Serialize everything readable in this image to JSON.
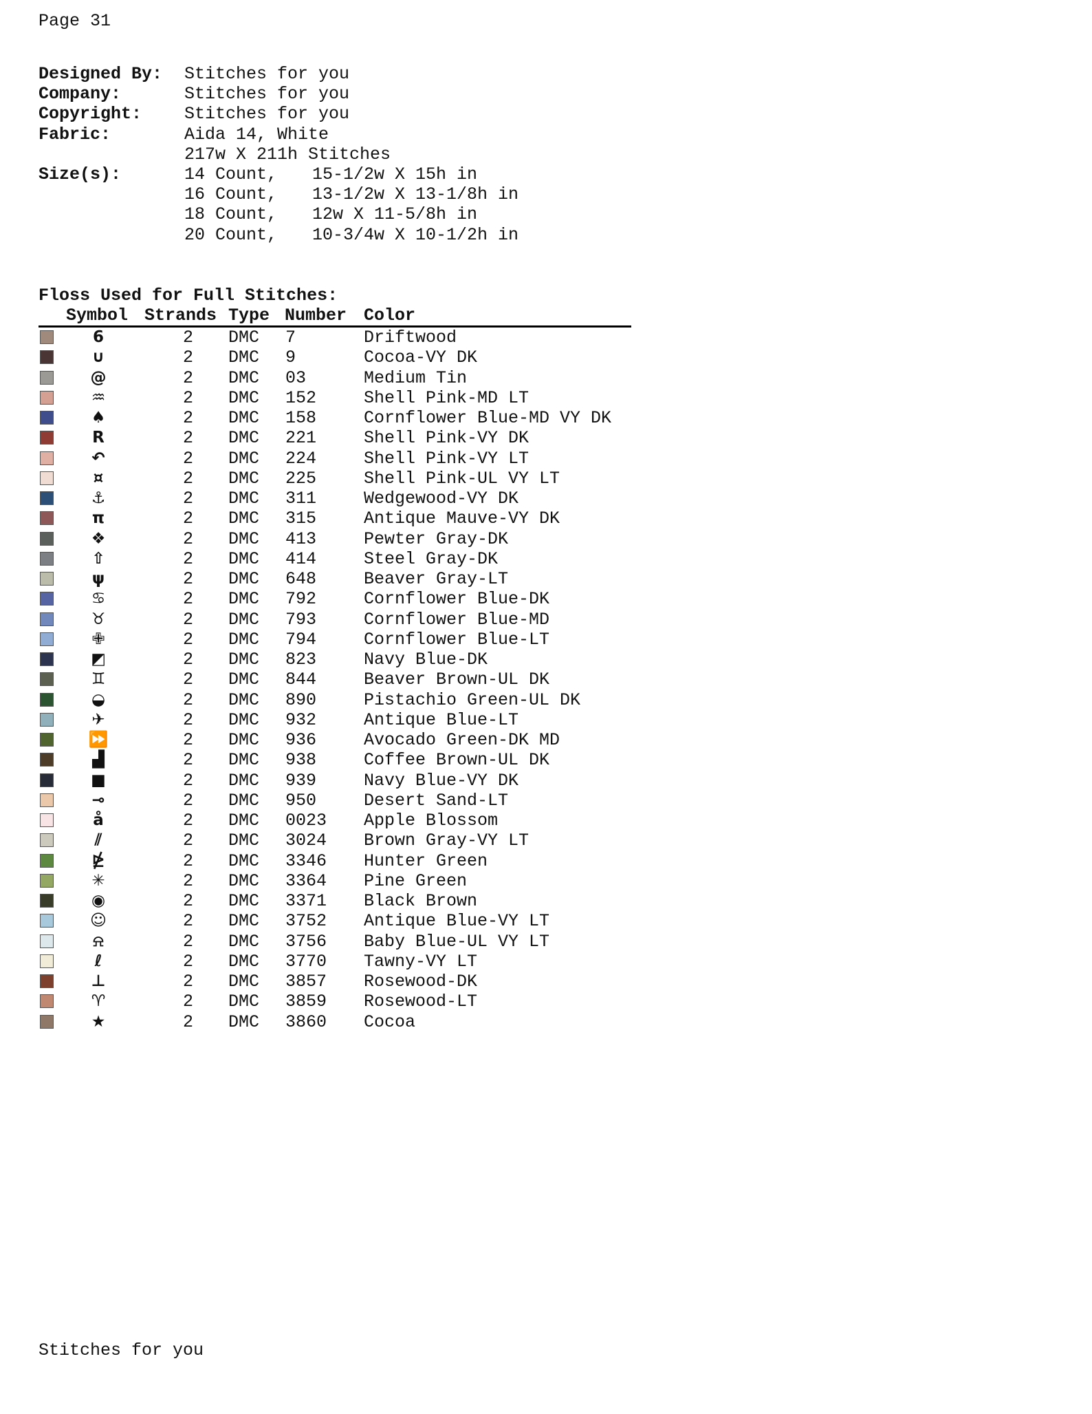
{
  "page_label": "Page 31",
  "meta": [
    {
      "label": "Designed By:",
      "value": "Stitches for you",
      "value2": ""
    },
    {
      "label": "Company:",
      "value": "Stitches for you",
      "value2": ""
    },
    {
      "label": "Copyright:",
      "value": "Stitches for you",
      "value2": ""
    },
    {
      "label": "Fabric:",
      "value": "Aida 14, White",
      "value2": ""
    },
    {
      "label": "",
      "value": "217w X 211h Stitches",
      "value2": ""
    },
    {
      "label": "Size(s):",
      "value": "14 Count,",
      "value2": "15-1/2w X 15h in"
    },
    {
      "label": "",
      "value": "16 Count,",
      "value2": "13-1/2w X 13-1/8h in"
    },
    {
      "label": "",
      "value": "18 Count,",
      "value2": "12w X 11-5/8h in"
    },
    {
      "label": "",
      "value": "20 Count,",
      "value2": "10-3/4w X 10-1/2h in"
    }
  ],
  "floss_title": "Floss Used for Full Stitches:",
  "headers": {
    "symbol": "Symbol",
    "strands": "Strands",
    "type": "Type",
    "number": "Number",
    "color": "Color"
  },
  "rows": [
    {
      "swatch": "#a08a7c",
      "symbol": "6",
      "strands": "2",
      "type": "DMC",
      "number": "7",
      "color": "Driftwood"
    },
    {
      "swatch": "#4a3434",
      "symbol": "∪",
      "strands": "2",
      "type": "DMC",
      "number": "9",
      "color": "Cocoa-VY DK"
    },
    {
      "swatch": "#9c9a94",
      "symbol": "@",
      "strands": "2",
      "type": "DMC",
      "number": "03",
      "color": "Medium Tin"
    },
    {
      "swatch": "#d4a094",
      "symbol": "♒",
      "strands": "2",
      "type": "DMC",
      "number": "152",
      "color": "Shell Pink-MD LT"
    },
    {
      "swatch": "#3f4d8c",
      "symbol": "♠",
      "strands": "2",
      "type": "DMC",
      "number": "158",
      "color": "Cornflower Blue-MD VY DK"
    },
    {
      "swatch": "#8f3c34",
      "symbol": "R",
      "strands": "2",
      "type": "DMC",
      "number": "221",
      "color": "Shell Pink-VY DK"
    },
    {
      "swatch": "#e0b0a4",
      "symbol": "↶",
      "strands": "2",
      "type": "DMC",
      "number": "224",
      "color": "Shell Pink-VY LT"
    },
    {
      "swatch": "#f0dcd2",
      "symbol": "¤",
      "strands": "2",
      "type": "DMC",
      "number": "225",
      "color": "Shell Pink-UL VY LT"
    },
    {
      "swatch": "#2c4f78",
      "symbol": "⚓",
      "strands": "2",
      "type": "DMC",
      "number": "311",
      "color": "Wedgewood-VY DK"
    },
    {
      "swatch": "#8e5858",
      "symbol": "π",
      "strands": "2",
      "type": "DMC",
      "number": "315",
      "color": "Antique Mauve-VY DK"
    },
    {
      "swatch": "#5c605c",
      "symbol": "❖",
      "strands": "2",
      "type": "DMC",
      "number": "413",
      "color": "Pewter Gray-DK"
    },
    {
      "swatch": "#7c8084",
      "symbol": "⇧",
      "strands": "2",
      "type": "DMC",
      "number": "414",
      "color": "Steel Gray-DK"
    },
    {
      "swatch": "#bcbcaa",
      "symbol": "ψ",
      "strands": "2",
      "type": "DMC",
      "number": "648",
      "color": "Beaver Gray-LT"
    },
    {
      "swatch": "#5664a4",
      "symbol": "♋",
      "strands": "2",
      "type": "DMC",
      "number": "792",
      "color": "Cornflower Blue-DK"
    },
    {
      "swatch": "#7088bc",
      "symbol": "♉",
      "strands": "2",
      "type": "DMC",
      "number": "793",
      "color": "Cornflower Blue-MD"
    },
    {
      "swatch": "#90acd4",
      "symbol": "✙",
      "strands": "2",
      "type": "DMC",
      "number": "794",
      "color": "Cornflower Blue-LT"
    },
    {
      "swatch": "#2c3450",
      "symbol": "◩",
      "strands": "2",
      "type": "DMC",
      "number": "823",
      "color": "Navy Blue-DK"
    },
    {
      "swatch": "#5c6050",
      "symbol": "♊",
      "strands": "2",
      "type": "DMC",
      "number": "844",
      "color": "Beaver Brown-UL DK"
    },
    {
      "swatch": "#2c5430",
      "symbol": "◒",
      "strands": "2",
      "type": "DMC",
      "number": "890",
      "color": "Pistachio Green-UL DK"
    },
    {
      "swatch": "#90b0bc",
      "symbol": "✈",
      "strands": "2",
      "type": "DMC",
      "number": "932",
      "color": "Antique Blue-LT"
    },
    {
      "swatch": "#506430",
      "symbol": "⏩",
      "strands": "2",
      "type": "DMC",
      "number": "936",
      "color": "Avocado Green-DK MD"
    },
    {
      "swatch": "#4c3c28",
      "symbol": "▟",
      "strands": "2",
      "type": "DMC",
      "number": "938",
      "color": "Coffee Brown-UL DK"
    },
    {
      "swatch": "#282c38",
      "symbol": "■",
      "strands": "2",
      "type": "DMC",
      "number": "939",
      "color": "Navy Blue-VY DK"
    },
    {
      "swatch": "#ecc8aa",
      "symbol": "⊸",
      "strands": "2",
      "type": "DMC",
      "number": "950",
      "color": "Desert Sand-LT"
    },
    {
      "swatch": "#f8e4e4",
      "symbol": "å",
      "strands": "2",
      "type": "DMC",
      "number": "0023",
      "color": "Apple Blossom"
    },
    {
      "swatch": "#cccabc",
      "symbol": "⫽",
      "strands": "2",
      "type": "DMC",
      "number": "3024",
      "color": "Brown Gray-VY LT"
    },
    {
      "swatch": "#5c8840",
      "symbol": "⋭",
      "strands": "2",
      "type": "DMC",
      "number": "3346",
      "color": "Hunter Green"
    },
    {
      "swatch": "#94a864",
      "symbol": "✳",
      "strands": "2",
      "type": "DMC",
      "number": "3364",
      "color": "Pine Green"
    },
    {
      "swatch": "#383c28",
      "symbol": "◉",
      "strands": "2",
      "type": "DMC",
      "number": "3371",
      "color": "Black Brown"
    },
    {
      "swatch": "#a8c8dc",
      "symbol": "☺",
      "strands": "2",
      "type": "DMC",
      "number": "3752",
      "color": "Antique Blue-VY LT"
    },
    {
      "swatch": "#dce8ec",
      "symbol": "⍾",
      "strands": "2",
      "type": "DMC",
      "number": "3756",
      "color": "Baby Blue-UL VY LT"
    },
    {
      "swatch": "#f0ecd8",
      "symbol": "ℓ",
      "strands": "2",
      "type": "DMC",
      "number": "3770",
      "color": "Tawny-VY LT"
    },
    {
      "swatch": "#7c402c",
      "symbol": "⊥",
      "strands": "2",
      "type": "DMC",
      "number": "3857",
      "color": "Rosewood-DK"
    },
    {
      "swatch": "#c08870",
      "symbol": "♈",
      "strands": "2",
      "type": "DMC",
      "number": "3859",
      "color": "Rosewood-LT"
    },
    {
      "swatch": "#907868",
      "symbol": "★",
      "strands": "2",
      "type": "DMC",
      "number": "3860",
      "color": "Cocoa"
    }
  ],
  "footer": "Stitches for you"
}
